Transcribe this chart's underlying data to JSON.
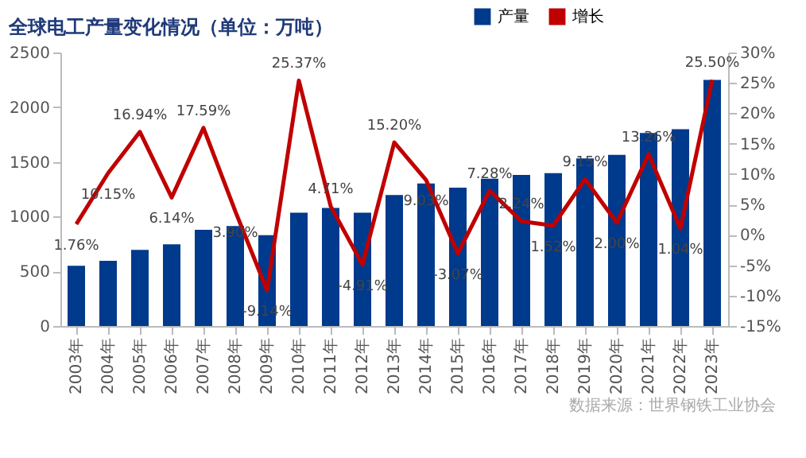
{
  "chart_data": {
    "type": "bar",
    "title": "全球电工产量变化情况（单位：万吨）",
    "categories": [
      "2003年",
      "2004年",
      "2005年",
      "2006年",
      "2007年",
      "2008年",
      "2009年",
      "2010年",
      "2011年",
      "2012年",
      "2013年",
      "2014年",
      "2015年",
      "2016年",
      "2017年",
      "2018年",
      "2019年",
      "2020年",
      "2021年",
      "2022年",
      "2023年"
    ],
    "series": [
      {
        "name": "产量",
        "color": "#003a8c",
        "values": [
          551,
          596,
          696,
          746,
          880,
          913,
          830,
          1036,
          1080,
          1036,
          1197,
          1303,
          1264,
          1347,
          1381,
          1398,
          1531,
          1565,
          1765,
          1798,
          2249
        ]
      },
      {
        "name": "增长",
        "type": "line",
        "axis": "y2",
        "color": "#c00000",
        "values": [
          1.76,
          10.15,
          16.94,
          6.14,
          17.59,
          3.9,
          -9.14,
          25.37,
          4.71,
          -4.91,
          15.2,
          9.03,
          -3.07,
          7.28,
          2.24,
          1.52,
          9.15,
          2.0,
          13.26,
          1.04,
          25.5
        ],
        "value_labels": [
          "1.76%",
          "10.15%",
          "16.94%",
          "6.14%",
          "17.59%",
          "3.90%",
          "-9.14%",
          "25.37%",
          "4.71%",
          "-4.91%",
          "15.20%",
          "9.03%",
          "-3.07%",
          "7.28%",
          "2.24%",
          "1.52%",
          "9.15%",
          "2.00%",
          "13.26%",
          "1.04%",
          "25.50%"
        ]
      }
    ],
    "ylim": [
      0,
      2500
    ],
    "yticks": [
      0,
      500,
      1000,
      1500,
      2000,
      2500
    ],
    "y2lim": [
      -15,
      30
    ],
    "y2ticks": [
      {
        "value": -15,
        "label": "-15%"
      },
      {
        "value": -10,
        "label": "-10%"
      },
      {
        "value": -5,
        "label": "-5%"
      },
      {
        "value": 0,
        "label": "0%"
      },
      {
        "value": 5,
        "label": "5%"
      },
      {
        "value": 10,
        "label": "10%"
      },
      {
        "value": 15,
        "label": "15%"
      },
      {
        "value": 20,
        "label": "20%"
      },
      {
        "value": 25,
        "label": "25%"
      },
      {
        "value": 30,
        "label": "30%"
      }
    ],
    "legend": "top right",
    "annotations": [
      "数据来源：世界钢铁工业协会"
    ]
  }
}
